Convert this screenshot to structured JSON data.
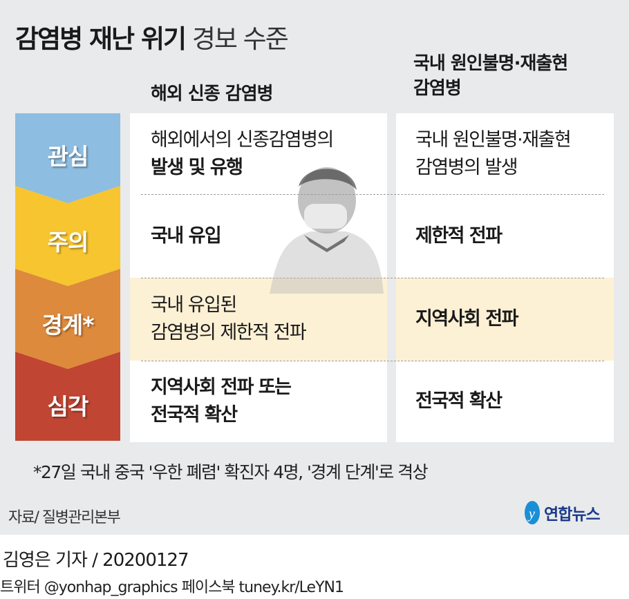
{
  "title": {
    "bold": "감염병 재난 위기",
    "light": "경보 수준"
  },
  "columns": {
    "col1": "해외 신종 감염병",
    "col2_line1": "국내 원인불명·재출현",
    "col2_line2": "감염병"
  },
  "levels": [
    {
      "label": "관심",
      "color": "#8dbde0"
    },
    {
      "label": "주의",
      "color": "#f6c52f"
    },
    {
      "label": "경계*",
      "color": "#dd8a3c"
    },
    {
      "label": "심각",
      "color": "#c04532"
    }
  ],
  "rows": [
    {
      "col1": [
        "해외에서의 신종감염병의",
        "발생 및 유행"
      ],
      "col2": [
        "국내 원인불명·재출현",
        "감염병의 발생"
      ]
    },
    {
      "col1": [
        "국내 유입"
      ],
      "col2": [
        "제한적 전파"
      ]
    },
    {
      "col1": [
        "국내 유입된",
        "감염병의 제한적 전파"
      ],
      "col2": [
        "지역사회 전파"
      ]
    },
    {
      "col1": [
        "지역사회 전파 또는",
        "전국적 확산"
      ],
      "col2": [
        "전국적 확산"
      ]
    }
  ],
  "highlight_color": "#fdf1d5",
  "note": "*27일 국내 중국 '우한 폐렴' 확진자 4명, '경계 단계'로 격상",
  "source": "자료/ 질병관리본부",
  "logo": "연합뉴스",
  "byline": "김영은 기자 / 20200127",
  "social": "트위터 @yonhap_graphics  페이스북 tuney.kr/LeYN1"
}
